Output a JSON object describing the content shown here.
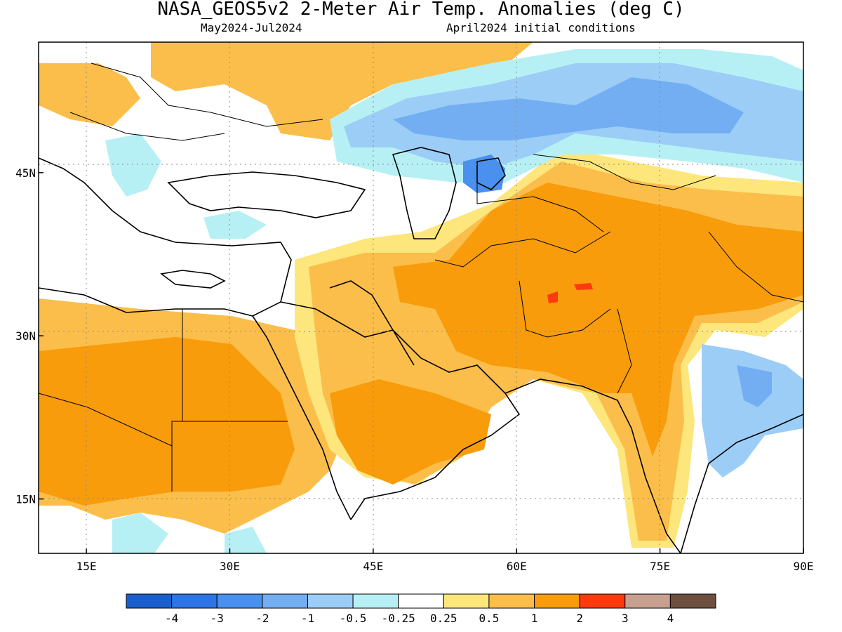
{
  "title": "NASA_GEOS5v2 2-Meter Air Temp. Anomalies (deg C)",
  "subtitle_left": "May2024-Jul2024",
  "subtitle_right": "April2024 initial conditions",
  "map": {
    "lon_range": [
      10,
      90
    ],
    "lat_range": [
      10,
      57
    ],
    "lon_ticks": [
      {
        "value": 15,
        "label": "15E"
      },
      {
        "value": 30,
        "label": "30E"
      },
      {
        "value": 45,
        "label": "45E"
      },
      {
        "value": 60,
        "label": "60E"
      },
      {
        "value": 75,
        "label": "75E"
      },
      {
        "value": 90,
        "label": "90E"
      }
    ],
    "lat_ticks": [
      {
        "value": 15,
        "label": "15N"
      },
      {
        "value": 30,
        "label": "30N"
      },
      {
        "value": 45,
        "label": "45N"
      }
    ],
    "grid": "dotted"
  },
  "colorbar": {
    "colors": [
      "#1a5fcd",
      "#2e74e6",
      "#4a90ee",
      "#74aef2",
      "#9ccdf6",
      "#b7f0f4",
      "#ffffff",
      "#fde67c",
      "#fbbe4a",
      "#f89c0c",
      "#fd3a0e",
      "#c8a090",
      "#6e5040"
    ],
    "labels": [
      "-4",
      "-3",
      "-2",
      "-1",
      "-0.5",
      "-0.25",
      "0.25",
      "0.5",
      "1",
      "2",
      "3",
      "4"
    ]
  }
}
